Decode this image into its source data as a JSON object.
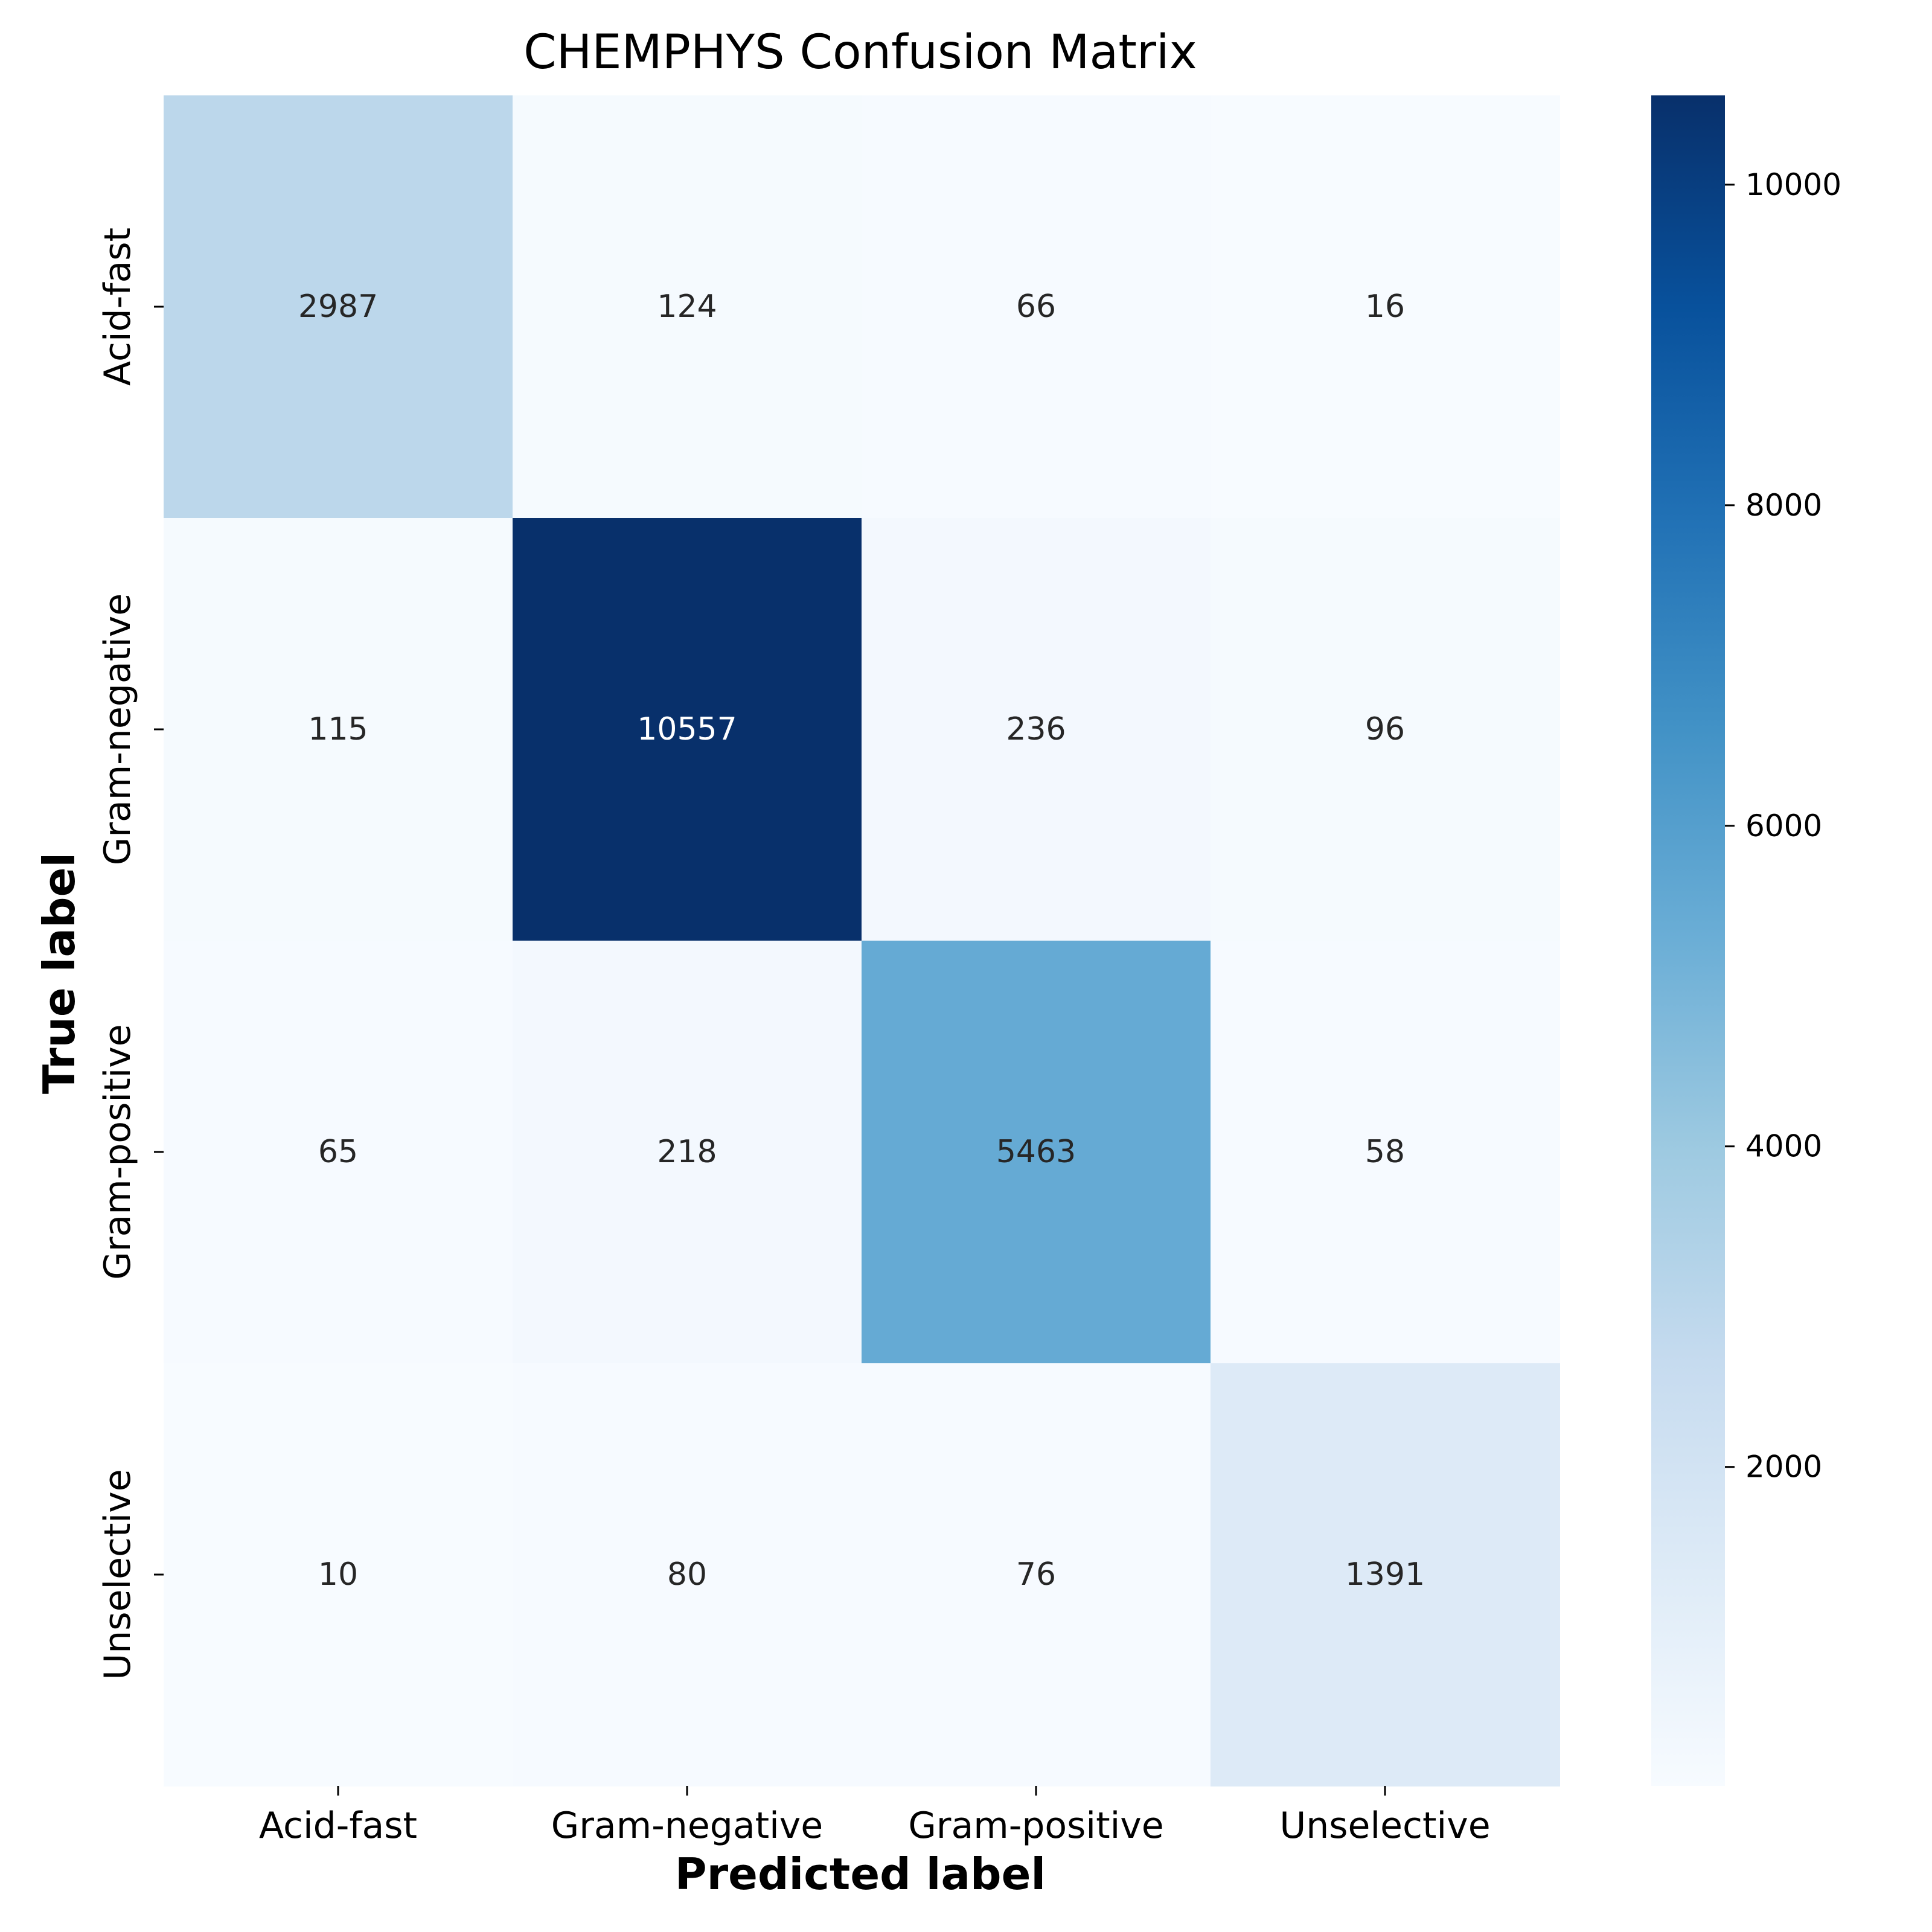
{
  "chart_data": {
    "type": "heatmap",
    "title": "CHEMPHYS Confusion Matrix",
    "xlabel": "Predicted label",
    "ylabel": "True label",
    "x_categories": [
      "Acid-fast",
      "Gram-negative",
      "Gram-positive",
      "Unselective"
    ],
    "y_categories": [
      "Acid-fast",
      "Gram-negative",
      "Gram-positive",
      "Unselective"
    ],
    "matrix": [
      [
        2987,
        124,
        66,
        16
      ],
      [
        115,
        10557,
        236,
        96
      ],
      [
        65,
        218,
        5463,
        58
      ],
      [
        10,
        80,
        76,
        1391
      ]
    ],
    "colormap": "Blues",
    "colorbar": {
      "range": [
        10,
        10557
      ],
      "ticks": [
        2000,
        4000,
        6000,
        8000,
        10000
      ],
      "tick_labels": [
        "2000",
        "4000",
        "6000",
        "8000",
        "10000"
      ]
    },
    "annotation_colors": {
      "dark": "#262626",
      "light": "#ffffff"
    }
  }
}
